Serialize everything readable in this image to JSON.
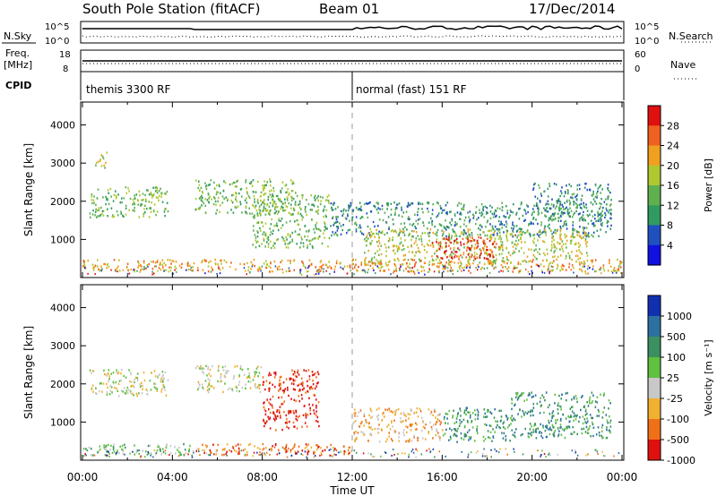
{
  "header": {
    "station": "South Pole Station (fitACF)",
    "beam": "Beam 01",
    "date": "17/Dec/2014"
  },
  "left_labels": {
    "nsky": "N.Sky",
    "freq": "Freq.",
    "freq_unit": "[MHz]",
    "cpid": "CPID"
  },
  "right_labels": {
    "nsearch": "N.Search",
    "nave": "Nave"
  },
  "cpid_blocks": [
    {
      "label": "themis 3300 RF",
      "start_hour": 0
    },
    {
      "label": "normal (fast) 151 RF",
      "start_hour": 12
    }
  ],
  "noise_panel": {
    "left_ticks": [
      "10^5",
      "10^0"
    ],
    "right_ticks": [
      "10^5",
      "10^0"
    ]
  },
  "freq_panel": {
    "left_ticks": [
      "18",
      "8"
    ],
    "right_ticks": [
      "60",
      "0"
    ]
  },
  "chart_data": [
    {
      "type": "heatmap",
      "name": "power",
      "x": "time",
      "xlim": [
        0,
        24
      ],
      "ylim": [
        0,
        4600
      ],
      "ylabel": "Slant Range [km]",
      "yticks": [
        "1000",
        "2000",
        "3000",
        "4000"
      ],
      "colorbar": {
        "label": "Power [dB]",
        "ticks": [
          "4",
          "8",
          "12",
          "16",
          "20",
          "24",
          "28"
        ],
        "colors": [
          "#1010e0",
          "#2050c0",
          "#309a60",
          "#60b050",
          "#b0c830",
          "#f0a020",
          "#f06020",
          "#e01010"
        ]
      },
      "regions": [
        {
          "t0": 0.3,
          "t1": 3.8,
          "r0": 1600,
          "r1": 2400,
          "level": 3
        },
        {
          "t0": 0.5,
          "t1": 1.1,
          "r0": 2900,
          "r1": 3300,
          "level": 4
        },
        {
          "t0": 5.0,
          "t1": 9.5,
          "r0": 1700,
          "r1": 2600,
          "level": 3
        },
        {
          "t0": 7.5,
          "t1": 11.0,
          "r0": 800,
          "r1": 2200,
          "level": 3
        },
        {
          "t0": 11.0,
          "t1": 23.5,
          "r0": 1100,
          "r1": 2000,
          "level": 2
        },
        {
          "t0": 12.5,
          "t1": 22.5,
          "r0": 350,
          "r1": 1300,
          "level": 4
        },
        {
          "t0": 15.5,
          "t1": 18.5,
          "r0": 500,
          "r1": 1100,
          "level": 7
        },
        {
          "t0": 20.0,
          "t1": 23.5,
          "r0": 1500,
          "r1": 2500,
          "level": 2
        },
        {
          "t0": 0.0,
          "t1": 24.0,
          "r0": 180,
          "r1": 500,
          "level": 5
        }
      ]
    },
    {
      "type": "heatmap",
      "name": "velocity",
      "x": "time",
      "xlim": [
        0,
        24
      ],
      "ylim": [
        0,
        4600
      ],
      "xlabel": "Time UT",
      "ylabel": "Slant Range [km]",
      "yticks": [
        "1000",
        "2000",
        "3000",
        "4000"
      ],
      "xticks": [
        "00:00",
        "04:00",
        "08:00",
        "12:00",
        "16:00",
        "20:00",
        "00:00"
      ],
      "colorbar": {
        "label": "Velocity [m s⁻¹]",
        "ticks": [
          "1000",
          "500",
          "100",
          "25",
          "-25",
          "-100",
          "-500",
          "-1000"
        ],
        "colors": [
          "#1030b0",
          "#2c70a0",
          "#3a9060",
          "#60c040",
          "#c8c8c8",
          "#f0b030",
          "#f07018",
          "#e01010"
        ]
      },
      "regions": [
        {
          "t0": 0.3,
          "t1": 3.8,
          "r0": 1700,
          "r1": 2400,
          "level": 4
        },
        {
          "t0": 5.0,
          "t1": 8.0,
          "r0": 1800,
          "r1": 2500,
          "level": 4
        },
        {
          "t0": 8.0,
          "t1": 10.5,
          "r0": 800,
          "r1": 2400,
          "level": 7
        },
        {
          "t0": 12.0,
          "t1": 16.0,
          "r0": 500,
          "r1": 1400,
          "level": 5
        },
        {
          "t0": 16.0,
          "t1": 19.0,
          "r0": 500,
          "r1": 1400,
          "level": 2
        },
        {
          "t0": 19.0,
          "t1": 23.5,
          "r0": 600,
          "r1": 1800,
          "level": 2
        },
        {
          "t0": 5.0,
          "t1": 12.0,
          "r0": 150,
          "r1": 450,
          "level": 6
        },
        {
          "t0": 0.0,
          "t1": 5.0,
          "r0": 150,
          "r1": 450,
          "level": 3
        }
      ]
    }
  ]
}
